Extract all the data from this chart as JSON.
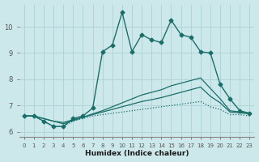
{
  "xlabel": "Humidex (Indice chaleur)",
  "xlim": [
    -0.5,
    23.5
  ],
  "ylim": [
    5.8,
    10.85
  ],
  "yticks": [
    6,
    7,
    8,
    9,
    10
  ],
  "xticks": [
    0,
    1,
    2,
    3,
    4,
    5,
    6,
    7,
    8,
    9,
    10,
    11,
    12,
    13,
    14,
    15,
    16,
    17,
    18,
    19,
    20,
    21,
    22,
    23
  ],
  "bg_color": "#cce8ea",
  "line_color": "#1a6e6a",
  "grid_color": "#b0d4d8",
  "lines": [
    {
      "x": [
        0,
        1,
        2,
        3,
        4,
        5,
        6,
        7,
        8,
        9,
        10,
        11,
        12,
        13,
        14,
        15,
        16,
        17,
        18,
        19,
        20,
        21,
        22,
        23
      ],
      "y": [
        6.6,
        6.6,
        6.4,
        6.2,
        6.2,
        6.5,
        6.6,
        6.9,
        9.05,
        9.3,
        10.55,
        9.05,
        9.7,
        9.5,
        9.4,
        10.25,
        9.7,
        9.6,
        9.05,
        9.0,
        7.8,
        7.25,
        6.8,
        6.7
      ],
      "marker": "D",
      "markersize": 2.5,
      "linestyle": "-",
      "linewidth": 1.0
    },
    {
      "x": [
        0,
        1,
        2,
        3,
        4,
        5,
        6,
        7,
        8,
        9,
        10,
        11,
        12,
        13,
        14,
        15,
        16,
        17,
        18,
        19,
        20,
        21,
        22,
        23
      ],
      "y": [
        6.6,
        6.6,
        6.4,
        6.2,
        6.2,
        6.4,
        6.5,
        6.6,
        6.65,
        6.7,
        6.75,
        6.8,
        6.85,
        6.9,
        6.95,
        7.0,
        7.05,
        7.1,
        7.15,
        6.95,
        6.85,
        6.65,
        6.65,
        6.6
      ],
      "marker": null,
      "markersize": 0,
      "linestyle": ":",
      "linewidth": 0.9
    },
    {
      "x": [
        0,
        1,
        2,
        3,
        4,
        5,
        6,
        7,
        8,
        9,
        10,
        11,
        12,
        13,
        14,
        15,
        16,
        17,
        18,
        19,
        20,
        21,
        22,
        23
      ],
      "y": [
        6.6,
        6.6,
        6.5,
        6.4,
        6.35,
        6.45,
        6.55,
        6.65,
        6.75,
        6.85,
        6.95,
        7.05,
        7.15,
        7.22,
        7.3,
        7.4,
        7.5,
        7.6,
        7.7,
        7.35,
        7.1,
        6.75,
        6.72,
        6.68
      ],
      "marker": null,
      "markersize": 0,
      "linestyle": "-",
      "linewidth": 0.9
    },
    {
      "x": [
        0,
        1,
        2,
        3,
        4,
        5,
        6,
        7,
        8,
        9,
        10,
        11,
        12,
        13,
        14,
        15,
        16,
        17,
        18,
        19,
        20,
        21,
        22,
        23
      ],
      "y": [
        6.6,
        6.6,
        6.5,
        6.4,
        6.3,
        6.42,
        6.55,
        6.68,
        6.8,
        6.95,
        7.1,
        7.25,
        7.4,
        7.5,
        7.6,
        7.75,
        7.85,
        7.95,
        8.05,
        7.65,
        7.25,
        6.8,
        6.75,
        6.7
      ],
      "marker": null,
      "markersize": 0,
      "linestyle": "-",
      "linewidth": 0.9
    }
  ]
}
